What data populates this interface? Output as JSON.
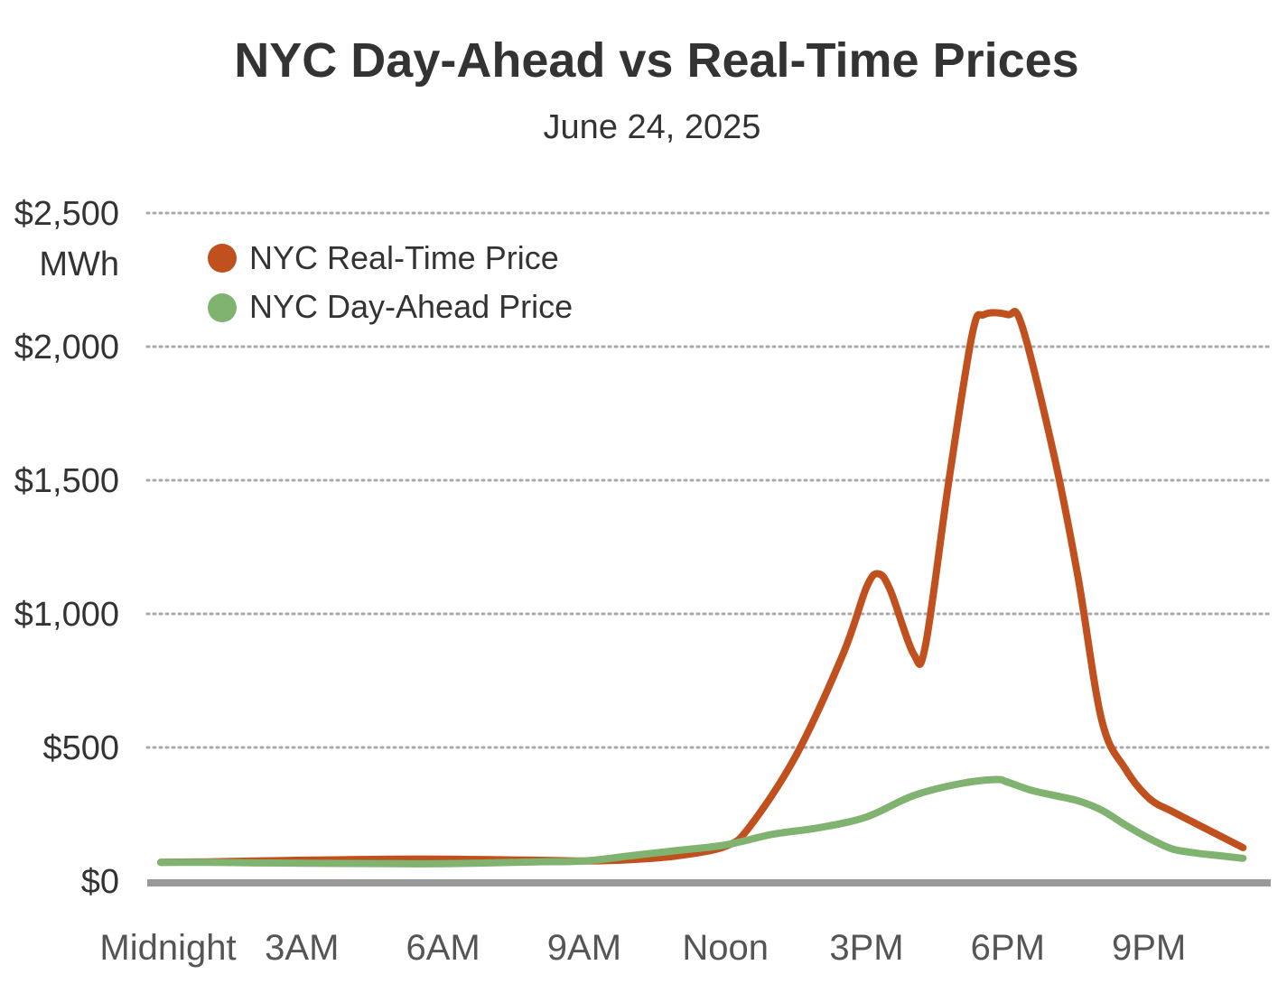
{
  "chart_data": {
    "type": "line",
    "title": "NYC Day-Ahead vs Real-Time Prices",
    "subtitle": "June 24, 2025",
    "ylabel_unit": "MWh",
    "ylim": [
      0,
      2500
    ],
    "y_ticks": [
      {
        "value": 0,
        "label": "$0"
      },
      {
        "value": 500,
        "label": "$500"
      },
      {
        "value": 1000,
        "label": "$1,000"
      },
      {
        "value": 1500,
        "label": "$1,500"
      },
      {
        "value": 2000,
        "label": "$2,000"
      },
      {
        "value": 2500,
        "label": "$2,500"
      }
    ],
    "xlim": [
      0,
      23
    ],
    "x_ticks": [
      {
        "value": 0,
        "label": "Midnight"
      },
      {
        "value": 3,
        "label": "3AM"
      },
      {
        "value": 6,
        "label": "6AM"
      },
      {
        "value": 9,
        "label": "9AM"
      },
      {
        "value": 12,
        "label": "Noon"
      },
      {
        "value": 15,
        "label": "3PM"
      },
      {
        "value": 18,
        "label": "6PM"
      },
      {
        "value": 21,
        "label": "9PM"
      }
    ],
    "grid": true,
    "legend_position": "top-left",
    "series": [
      {
        "name": "NYC Real-Time Price",
        "color": "#c0501e",
        "points": [
          [
            0,
            70
          ],
          [
            1,
            72
          ],
          [
            2,
            75
          ],
          [
            3,
            78
          ],
          [
            4,
            80
          ],
          [
            5,
            82
          ],
          [
            6,
            82
          ],
          [
            7,
            80
          ],
          [
            8,
            78
          ],
          [
            9,
            75
          ],
          [
            10,
            80
          ],
          [
            11,
            95
          ],
          [
            12,
            130
          ],
          [
            12.5,
            200
          ],
          [
            13.5,
            470
          ],
          [
            14.5,
            850
          ],
          [
            15,
            1100
          ],
          [
            15.25,
            1150
          ],
          [
            15.5,
            1090
          ],
          [
            16,
            850
          ],
          [
            16.25,
            880
          ],
          [
            16.75,
            1500
          ],
          [
            17.25,
            2050
          ],
          [
            17.5,
            2120
          ],
          [
            18,
            2120
          ],
          [
            18.3,
            2080
          ],
          [
            19,
            1580
          ],
          [
            19.5,
            1130
          ],
          [
            20,
            600
          ],
          [
            20.5,
            420
          ],
          [
            21,
            310
          ],
          [
            21.5,
            260
          ],
          [
            22,
            215
          ],
          [
            22.5,
            170
          ],
          [
            23,
            125
          ]
        ]
      },
      {
        "name": "NYC Day-Ahead Price",
        "color": "#7fb36f",
        "points": [
          [
            0,
            70
          ],
          [
            1,
            70
          ],
          [
            2,
            68
          ],
          [
            3,
            67
          ],
          [
            4,
            66
          ],
          [
            5,
            65
          ],
          [
            6,
            65
          ],
          [
            7,
            68
          ],
          [
            8,
            72
          ],
          [
            9,
            75
          ],
          [
            10,
            95
          ],
          [
            11,
            115
          ],
          [
            12,
            135
          ],
          [
            13,
            175
          ],
          [
            14,
            200
          ],
          [
            15,
            240
          ],
          [
            16,
            320
          ],
          [
            17,
            365
          ],
          [
            17.75,
            380
          ],
          [
            18,
            370
          ],
          [
            18.5,
            340
          ],
          [
            19,
            320
          ],
          [
            19.5,
            300
          ],
          [
            20,
            265
          ],
          [
            20.5,
            210
          ],
          [
            21,
            160
          ],
          [
            21.5,
            120
          ],
          [
            22,
            105
          ],
          [
            22.5,
            95
          ],
          [
            23,
            85
          ]
        ]
      }
    ]
  }
}
